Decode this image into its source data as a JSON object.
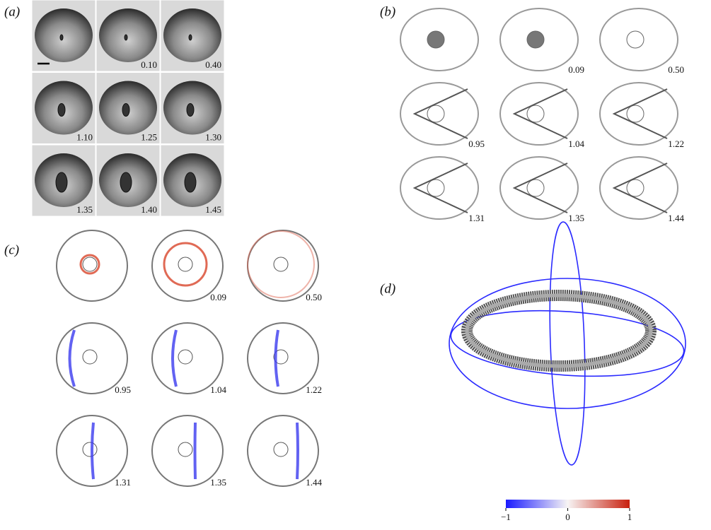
{
  "panels": {
    "a": {
      "label": "(a)",
      "times": [
        "0.10",
        "0.40",
        "1.10",
        "1.25",
        "1.30",
        "1.35",
        "1.40",
        "1.45"
      ]
    },
    "b": {
      "label": "(b)",
      "times": [
        "0.09",
        "0.50",
        "0.95",
        "1.04",
        "1.22",
        "1.31",
        "1.35",
        "1.44"
      ]
    },
    "c": {
      "label": "(c)",
      "times": [
        "0.09",
        "0.50",
        "0.95",
        "1.04",
        "1.22",
        "1.31",
        "1.35",
        "1.44"
      ]
    },
    "d": {
      "label": "(d)",
      "colorbar_ticks": [
        {
          "value": -1,
          "label": "−1"
        },
        0,
        1
      ]
    }
  }
}
